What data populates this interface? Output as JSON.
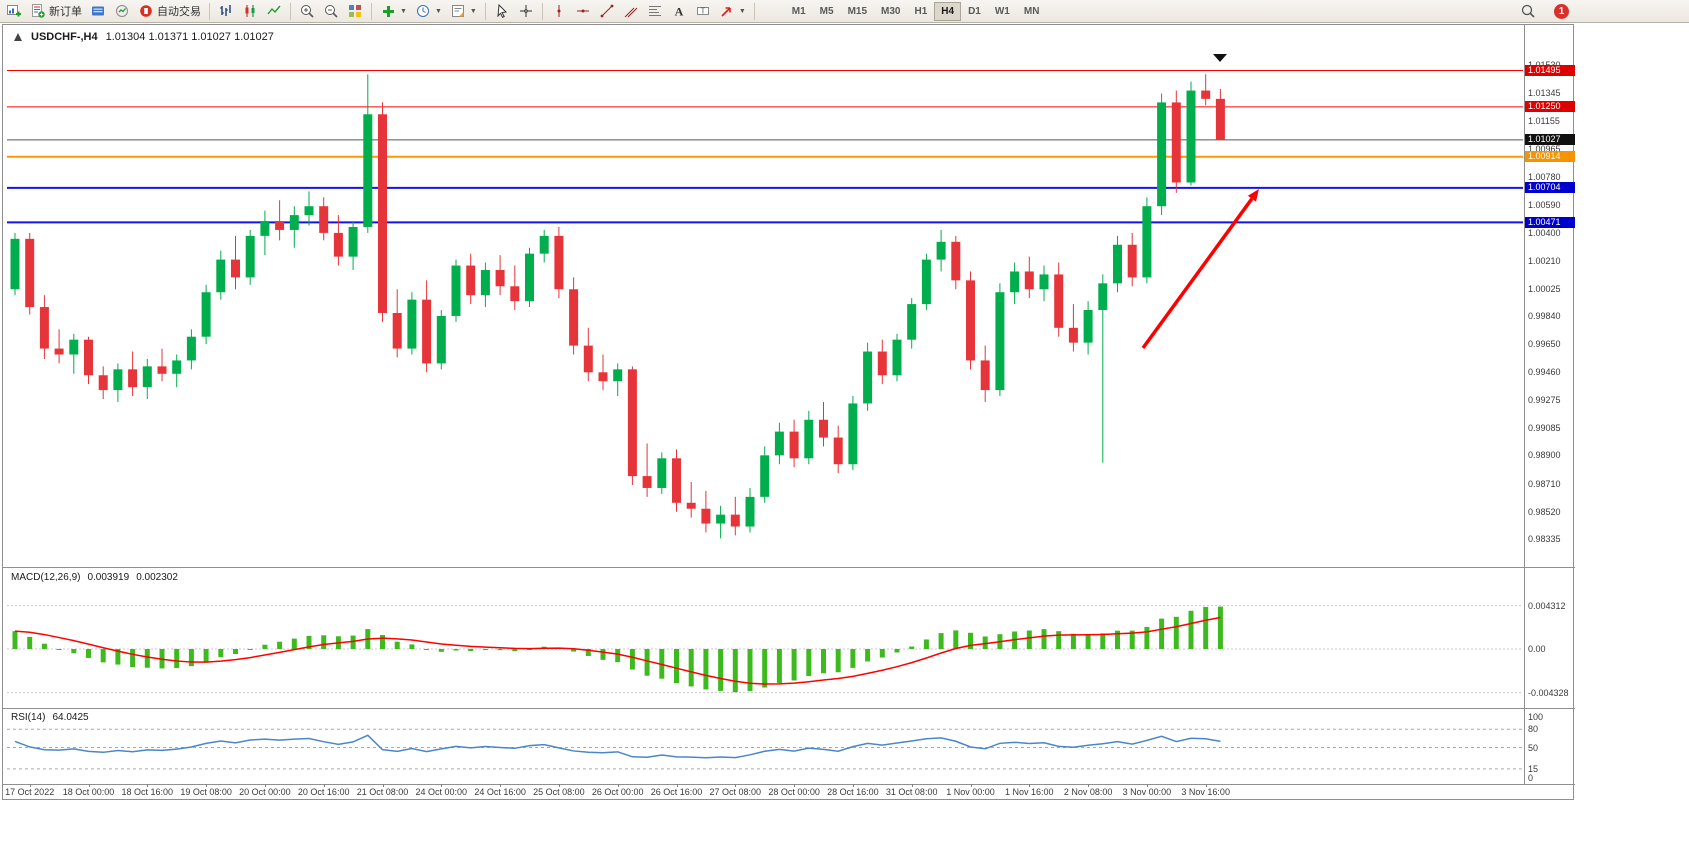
{
  "toolbar": {
    "new_order_label": "新订单",
    "auto_trading_label": "自动交易",
    "timeframes": [
      "M1",
      "M5",
      "M15",
      "M30",
      "H1",
      "H4",
      "D1",
      "W1",
      "MN"
    ],
    "active_timeframe": "H4",
    "notification_count": "1"
  },
  "colors": {
    "bull": "#00AE4D",
    "bear": "#E5353A",
    "macd_hist": "#3DBA1E",
    "macd_signal": "#FF0000",
    "rsi_line": "#4A86C8",
    "arrow": "#FF0000",
    "current_price_line": "#555555"
  },
  "chart_data": {
    "type": "candlestick",
    "symbol_title": "USDCHF-,H4",
    "ohlc_display": "1.01304 1.01371 1.01027 1.01027",
    "price_min": 0.98147,
    "price_max": 1.0162,
    "price_axis_labels": [
      "1.01530",
      "1.01345",
      "1.01155",
      "1.00965",
      "1.00780",
      "1.00590",
      "1.00400",
      "1.00210",
      "1.00025",
      "0.99840",
      "0.99650",
      "0.99460",
      "0.99275",
      "0.99085",
      "0.98900",
      "0.98710",
      "0.98520",
      "0.98335"
    ],
    "horizontal_lines": [
      {
        "price": 1.01495,
        "label": "1.01495",
        "line_color": "#FF0000",
        "tag_color": "#DE0000",
        "width": 1
      },
      {
        "price": 1.0125,
        "label": "1.01250",
        "line_color": "#FF0000",
        "tag_color": "#DE0000",
        "width": 1
      },
      {
        "price": 1.01027,
        "label": "1.01027",
        "line_color": "#555555",
        "tag_color": "#111111",
        "width": 1,
        "role": "current-price"
      },
      {
        "price": 1.00914,
        "label": "1.00914",
        "line_color": "#FF9800",
        "tag_color": "#F59300",
        "width": 2
      },
      {
        "price": 1.00704,
        "label": "1.00704",
        "line_color": "#1414E8",
        "tag_color": "#0000CD",
        "width": 2
      },
      {
        "price": 1.00471,
        "label": "1.00471",
        "line_color": "#1414E8",
        "tag_color": "#0000CD",
        "width": 2
      }
    ],
    "candles": [
      [
        1.0002,
        1.004,
        0.9998,
        1.0036
      ],
      [
        1.0036,
        1.004,
        0.9985,
        0.999
      ],
      [
        0.999,
        0.9998,
        0.9955,
        0.9962
      ],
      [
        0.9962,
        0.9975,
        0.9952,
        0.9958
      ],
      [
        0.9958,
        0.9972,
        0.9945,
        0.9968
      ],
      [
        0.9968,
        0.997,
        0.9938,
        0.9944
      ],
      [
        0.9944,
        0.995,
        0.9928,
        0.9934
      ],
      [
        0.9934,
        0.9952,
        0.9926,
        0.9948
      ],
      [
        0.9948,
        0.996,
        0.993,
        0.9936
      ],
      [
        0.9936,
        0.9955,
        0.9928,
        0.995
      ],
      [
        0.995,
        0.9962,
        0.994,
        0.9945
      ],
      [
        0.9945,
        0.9958,
        0.9936,
        0.9954
      ],
      [
        0.9954,
        0.9975,
        0.9948,
        0.997
      ],
      [
        0.997,
        1.0005,
        0.9965,
        1.0
      ],
      [
        1.0,
        1.0028,
        0.9995,
        1.0022
      ],
      [
        1.0022,
        1.0038,
        1.0002,
        1.001
      ],
      [
        1.001,
        1.0042,
        1.0005,
        1.0038
      ],
      [
        1.0038,
        1.0055,
        1.0025,
        1.0048
      ],
      [
        1.0048,
        1.0062,
        1.0035,
        1.0042
      ],
      [
        1.0042,
        1.0058,
        1.003,
        1.0052
      ],
      [
        1.0052,
        1.0068,
        1.0045,
        1.0058
      ],
      [
        1.0058,
        1.0064,
        1.0035,
        1.004
      ],
      [
        1.004,
        1.0052,
        1.0018,
        1.0024
      ],
      [
        1.0024,
        1.0048,
        1.0015,
        1.0044
      ],
      [
        1.0044,
        1.0147,
        1.004,
        1.012
      ],
      [
        1.012,
        1.0128,
        0.998,
        0.9986
      ],
      [
        0.9986,
        1.0002,
        0.9956,
        0.9962
      ],
      [
        0.9962,
        1.0,
        0.9958,
        0.9995
      ],
      [
        0.9995,
        1.0008,
        0.9946,
        0.9952
      ],
      [
        0.9952,
        0.9988,
        0.9948,
        0.9984
      ],
      [
        0.9984,
        1.0022,
        0.998,
        1.0018
      ],
      [
        1.0018,
        1.0026,
        0.9992,
        0.9998
      ],
      [
        0.9998,
        1.002,
        0.999,
        1.0015
      ],
      [
        1.0015,
        1.0025,
        0.9998,
        1.0004
      ],
      [
        1.0004,
        1.0018,
        0.9988,
        0.9994
      ],
      [
        0.9994,
        1.003,
        0.999,
        1.0026
      ],
      [
        1.0026,
        1.0042,
        1.002,
        1.0038
      ],
      [
        1.0038,
        1.0044,
        0.9996,
        1.0002
      ],
      [
        1.0002,
        1.001,
        0.9958,
        0.9964
      ],
      [
        0.9964,
        0.9976,
        0.994,
        0.9946
      ],
      [
        0.9946,
        0.9958,
        0.9934,
        0.994
      ],
      [
        0.994,
        0.9952,
        0.993,
        0.9948
      ],
      [
        0.9948,
        0.995,
        0.987,
        0.9876
      ],
      [
        0.9876,
        0.9898,
        0.9862,
        0.9868
      ],
      [
        0.9868,
        0.9892,
        0.9864,
        0.9888
      ],
      [
        0.9888,
        0.9894,
        0.9852,
        0.9858
      ],
      [
        0.9858,
        0.9872,
        0.9848,
        0.9854
      ],
      [
        0.9854,
        0.9866,
        0.9838,
        0.9844
      ],
      [
        0.9844,
        0.9856,
        0.9834,
        0.985
      ],
      [
        0.985,
        0.9862,
        0.9836,
        0.9842
      ],
      [
        0.9842,
        0.9868,
        0.9838,
        0.9862
      ],
      [
        0.9862,
        0.9896,
        0.9858,
        0.989
      ],
      [
        0.989,
        0.9912,
        0.9884,
        0.9906
      ],
      [
        0.9906,
        0.9914,
        0.9882,
        0.9888
      ],
      [
        0.9888,
        0.992,
        0.9884,
        0.9914
      ],
      [
        0.9914,
        0.9926,
        0.9896,
        0.9902
      ],
      [
        0.9902,
        0.991,
        0.9878,
        0.9884
      ],
      [
        0.9884,
        0.993,
        0.988,
        0.9925
      ],
      [
        0.9925,
        0.9966,
        0.992,
        0.996
      ],
      [
        0.996,
        0.9968,
        0.9938,
        0.9944
      ],
      [
        0.9944,
        0.9972,
        0.994,
        0.9968
      ],
      [
        0.9968,
        0.9996,
        0.9962,
        0.9992
      ],
      [
        0.9992,
        1.0026,
        0.9988,
        1.0022
      ],
      [
        1.0022,
        1.0042,
        1.0014,
        1.0034
      ],
      [
        1.0034,
        1.0038,
        1.0002,
        1.0008
      ],
      [
        1.0008,
        1.0014,
        0.9948,
        0.9954
      ],
      [
        0.9954,
        0.9964,
        0.9926,
        0.9934
      ],
      [
        0.9934,
        1.0006,
        0.993,
        1.0
      ],
      [
        1.0,
        1.002,
        0.9992,
        1.0014
      ],
      [
        1.0014,
        1.0024,
        0.9996,
        1.0002
      ],
      [
        1.0002,
        1.0018,
        0.9994,
        1.0012
      ],
      [
        1.0012,
        1.002,
        0.997,
        0.9976
      ],
      [
        0.9976,
        0.9992,
        0.996,
        0.9966
      ],
      [
        0.9966,
        0.9994,
        0.9958,
        0.9988
      ],
      [
        0.9988,
        1.0012,
        0.9885,
        1.0006
      ],
      [
        1.0006,
        1.0038,
        1.0,
        1.0032
      ],
      [
        1.0032,
        1.004,
        1.0004,
        1.001
      ],
      [
        1.001,
        1.0064,
        1.0006,
        1.0058
      ],
      [
        1.0058,
        1.0134,
        1.0052,
        1.0128
      ],
      [
        1.0128,
        1.0136,
        1.0067,
        1.0074
      ],
      [
        1.0074,
        1.0142,
        1.0072,
        1.0136
      ],
      [
        1.0136,
        1.0147,
        1.0126,
        1.01304
      ],
      [
        1.01304,
        1.01371,
        1.01027,
        1.01027
      ]
    ],
    "trend_arrow": {
      "from": [
        1140,
        323
      ],
      "to": [
        1256,
        164
      ]
    },
    "time_axis_labels": [
      "17 Oct 2022",
      "18 Oct 00:00",
      "18 Oct 16:00",
      "19 Oct 08:00",
      "20 Oct 00:00",
      "20 Oct 16:00",
      "21 Oct 08:00",
      "24 Oct 00:00",
      "24 Oct 16:00",
      "25 Oct 08:00",
      "26 Oct 00:00",
      "26 Oct 16:00",
      "27 Oct 08:00",
      "28 Oct 00:00",
      "28 Oct 16:00",
      "31 Oct 08:00",
      "1 Nov 00:00",
      "1 Nov 16:00",
      "2 Nov 08:00",
      "3 Nov 00:00",
      "3 Nov 16:00"
    ],
    "macd": {
      "label": "MACD(12,26,9)",
      "main_value": "0.003919",
      "signal_value": "0.002302",
      "axis_labels": [
        "0.004312",
        "0.00",
        "-0.004328"
      ]
    },
    "rsi": {
      "label": "RSI(14)",
      "value": "64.0425",
      "axis_labels": [
        "100",
        "80",
        "50",
        "15",
        "0"
      ],
      "levels": [
        80,
        50,
        15
      ]
    }
  }
}
